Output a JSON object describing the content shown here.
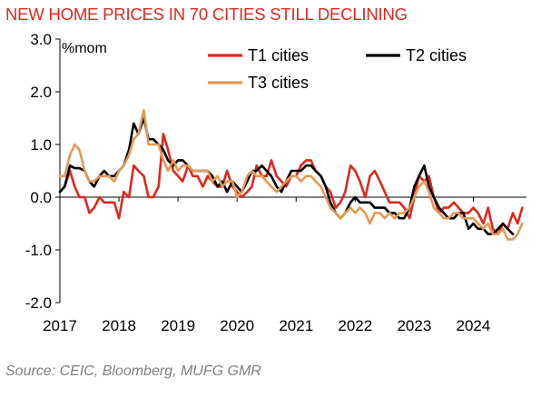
{
  "title": "NEW HOME PRICES IN 70 CITIES STILL DECLINING",
  "source": "Source: CEIC, Bloomberg, MUFG GMR",
  "chart_data": {
    "type": "line",
    "title": "NEW HOME PRICES IN 70 CITIES STILL DECLINING",
    "ylabel": "%mom",
    "xlabel": "",
    "ylim": [
      -2.0,
      3.0
    ],
    "yticks": [
      "3.0",
      "2.0",
      "1.0",
      "0.0",
      "-1.0",
      "-2.0"
    ],
    "xlim": [
      2017.0,
      2024.9
    ],
    "xticks": [
      "2017",
      "2018",
      "2019",
      "2020",
      "2021",
      "2022",
      "2023",
      "2024"
    ],
    "grid": false,
    "legend": "top-right",
    "series": [
      {
        "name": "T1 cities",
        "color": "#e0271c",
        "x": [
          2017.0,
          2017.08,
          2017.17,
          2017.25,
          2017.33,
          2017.42,
          2017.5,
          2017.58,
          2017.67,
          2017.75,
          2017.83,
          2017.92,
          2018.0,
          2018.08,
          2018.17,
          2018.25,
          2018.33,
          2018.42,
          2018.5,
          2018.58,
          2018.67,
          2018.75,
          2018.83,
          2018.92,
          2019.0,
          2019.08,
          2019.17,
          2019.25,
          2019.33,
          2019.42,
          2019.5,
          2019.58,
          2019.67,
          2019.75,
          2019.83,
          2019.92,
          2020.0,
          2020.08,
          2020.17,
          2020.25,
          2020.33,
          2020.42,
          2020.5,
          2020.58,
          2020.67,
          2020.75,
          2020.83,
          2020.92,
          2021.0,
          2021.08,
          2021.17,
          2021.25,
          2021.33,
          2021.42,
          2021.5,
          2021.58,
          2021.67,
          2021.75,
          2021.83,
          2021.92,
          2022.0,
          2022.08,
          2022.17,
          2022.25,
          2022.33,
          2022.42,
          2022.5,
          2022.58,
          2022.67,
          2022.75,
          2022.83,
          2022.92,
          2023.0,
          2023.08,
          2023.17,
          2023.25,
          2023.33,
          2023.42,
          2023.5,
          2023.58,
          2023.67,
          2023.75,
          2023.83,
          2023.92,
          2024.0,
          2024.08,
          2024.17,
          2024.25,
          2024.33,
          2024.42,
          2024.5,
          2024.58,
          2024.67,
          2024.75,
          2024.83
        ],
        "values": [
          0.1,
          0.2,
          0.5,
          0.2,
          0.0,
          0.0,
          -0.3,
          -0.2,
          0.0,
          -0.1,
          -0.1,
          -0.1,
          -0.4,
          0.1,
          0.0,
          0.6,
          0.5,
          0.4,
          0.0,
          0.0,
          0.2,
          1.2,
          0.9,
          0.5,
          0.4,
          0.3,
          0.6,
          0.4,
          0.4,
          0.2,
          0.4,
          0.3,
          0.2,
          0.2,
          0.5,
          0.2,
          0.1,
          0.0,
          0.1,
          0.2,
          0.6,
          0.4,
          0.4,
          0.7,
          0.4,
          0.3,
          0.2,
          0.4,
          0.4,
          0.6,
          0.7,
          0.7,
          0.5,
          0.4,
          0.2,
          0.1,
          -0.2,
          -0.1,
          0.1,
          0.6,
          0.5,
          0.3,
          0.0,
          0.4,
          0.5,
          0.3,
          0.1,
          -0.1,
          -0.1,
          -0.1,
          -0.2,
          -0.4,
          0.0,
          0.4,
          0.3,
          0.4,
          0.0,
          -0.3,
          -0.2,
          -0.2,
          -0.1,
          -0.2,
          -0.3,
          -0.3,
          -0.2,
          -0.3,
          -0.5,
          -0.2,
          -0.6,
          -0.7,
          -0.5,
          -0.6,
          -0.3,
          -0.5,
          -0.2
        ]
      },
      {
        "name": "T2 cities",
        "color": "#000000",
        "x": [
          2017.0,
          2017.08,
          2017.17,
          2017.25,
          2017.33,
          2017.42,
          2017.5,
          2017.58,
          2017.67,
          2017.75,
          2017.83,
          2017.92,
          2018.0,
          2018.08,
          2018.17,
          2018.25,
          2018.33,
          2018.42,
          2018.5,
          2018.58,
          2018.67,
          2018.75,
          2018.83,
          2018.92,
          2019.0,
          2019.08,
          2019.17,
          2019.25,
          2019.33,
          2019.42,
          2019.5,
          2019.58,
          2019.67,
          2019.75,
          2019.83,
          2019.92,
          2020.0,
          2020.08,
          2020.17,
          2020.25,
          2020.33,
          2020.42,
          2020.5,
          2020.58,
          2020.67,
          2020.75,
          2020.83,
          2020.92,
          2021.0,
          2021.08,
          2021.17,
          2021.25,
          2021.33,
          2021.42,
          2021.5,
          2021.58,
          2021.67,
          2021.75,
          2021.83,
          2021.92,
          2022.0,
          2022.08,
          2022.17,
          2022.25,
          2022.33,
          2022.42,
          2022.5,
          2022.58,
          2022.67,
          2022.75,
          2022.83,
          2022.92,
          2023.0,
          2023.08,
          2023.17,
          2023.25,
          2023.33,
          2023.42,
          2023.5,
          2023.58,
          2023.67,
          2023.75,
          2023.83,
          2023.92,
          2024.0,
          2024.08,
          2024.17,
          2024.25,
          2024.33,
          2024.42,
          2024.5,
          2024.58,
          2024.67
        ],
        "values": [
          0.1,
          0.2,
          0.6,
          0.55,
          0.55,
          0.5,
          0.3,
          0.2,
          0.4,
          0.5,
          0.4,
          0.4,
          0.5,
          0.6,
          0.9,
          1.4,
          1.2,
          1.5,
          1.1,
          1.1,
          1.0,
          0.9,
          0.7,
          0.6,
          0.7,
          0.7,
          0.6,
          0.5,
          0.5,
          0.5,
          0.5,
          0.4,
          0.2,
          0.3,
          0.1,
          0.3,
          0.2,
          0.1,
          0.3,
          0.5,
          0.5,
          0.6,
          0.5,
          0.4,
          0.2,
          0.1,
          0.3,
          0.5,
          0.5,
          0.5,
          0.6,
          0.6,
          0.5,
          0.4,
          0.2,
          -0.1,
          -0.3,
          -0.4,
          -0.3,
          -0.1,
          0.0,
          -0.1,
          -0.1,
          -0.1,
          -0.2,
          -0.2,
          -0.2,
          -0.3,
          -0.3,
          -0.4,
          -0.4,
          -0.2,
          0.2,
          0.4,
          0.6,
          0.2,
          0.0,
          -0.2,
          -0.3,
          -0.4,
          -0.4,
          -0.3,
          -0.3,
          -0.6,
          -0.5,
          -0.6,
          -0.6,
          -0.7,
          -0.7,
          -0.6,
          -0.5,
          -0.6,
          -0.7
        ]
      },
      {
        "name": "T3 cities",
        "color": "#e39a54",
        "x": [
          2017.0,
          2017.08,
          2017.17,
          2017.25,
          2017.33,
          2017.42,
          2017.5,
          2017.58,
          2017.67,
          2017.75,
          2017.83,
          2017.92,
          2018.0,
          2018.08,
          2018.17,
          2018.25,
          2018.33,
          2018.42,
          2018.5,
          2018.58,
          2018.67,
          2018.75,
          2018.83,
          2018.92,
          2019.0,
          2019.08,
          2019.17,
          2019.25,
          2019.33,
          2019.42,
          2019.5,
          2019.58,
          2019.67,
          2019.75,
          2019.83,
          2019.92,
          2020.0,
          2020.08,
          2020.17,
          2020.25,
          2020.33,
          2020.42,
          2020.5,
          2020.58,
          2020.67,
          2020.75,
          2020.83,
          2020.92,
          2021.0,
          2021.08,
          2021.17,
          2021.25,
          2021.33,
          2021.42,
          2021.5,
          2021.58,
          2021.67,
          2021.75,
          2021.83,
          2021.92,
          2022.0,
          2022.08,
          2022.17,
          2022.25,
          2022.33,
          2022.42,
          2022.5,
          2022.58,
          2022.67,
          2022.75,
          2022.83,
          2022.92,
          2023.0,
          2023.08,
          2023.17,
          2023.25,
          2023.33,
          2023.42,
          2023.5,
          2023.58,
          2023.67,
          2023.75,
          2023.83,
          2023.92,
          2024.0,
          2024.08,
          2024.17,
          2024.25,
          2024.33,
          2024.42,
          2024.5,
          2024.58,
          2024.67,
          2024.75,
          2024.83
        ],
        "values": [
          0.4,
          0.4,
          0.8,
          1.0,
          0.9,
          0.5,
          0.3,
          0.3,
          0.4,
          0.4,
          0.4,
          0.3,
          0.5,
          0.6,
          0.8,
          1.1,
          1.2,
          1.65,
          1.0,
          1.0,
          1.0,
          0.7,
          0.5,
          0.7,
          0.5,
          0.6,
          0.6,
          0.5,
          0.5,
          0.5,
          0.5,
          0.3,
          0.4,
          0.2,
          0.3,
          0.3,
          0.0,
          0.1,
          0.4,
          0.5,
          0.4,
          0.4,
          0.3,
          0.2,
          0.1,
          0.2,
          0.3,
          0.4,
          0.4,
          0.3,
          0.4,
          0.4,
          0.3,
          0.2,
          0.0,
          -0.2,
          -0.3,
          -0.4,
          -0.3,
          -0.2,
          -0.3,
          -0.2,
          -0.3,
          -0.5,
          -0.3,
          -0.3,
          -0.4,
          -0.3,
          -0.4,
          -0.3,
          -0.3,
          -0.2,
          0.0,
          0.2,
          0.3,
          0.1,
          -0.2,
          -0.3,
          -0.4,
          -0.4,
          -0.3,
          -0.3,
          -0.4,
          -0.4,
          -0.4,
          -0.5,
          -0.6,
          -0.5,
          -0.7,
          -0.7,
          -0.6,
          -0.8,
          -0.8,
          -0.7,
          -0.5
        ]
      }
    ]
  }
}
